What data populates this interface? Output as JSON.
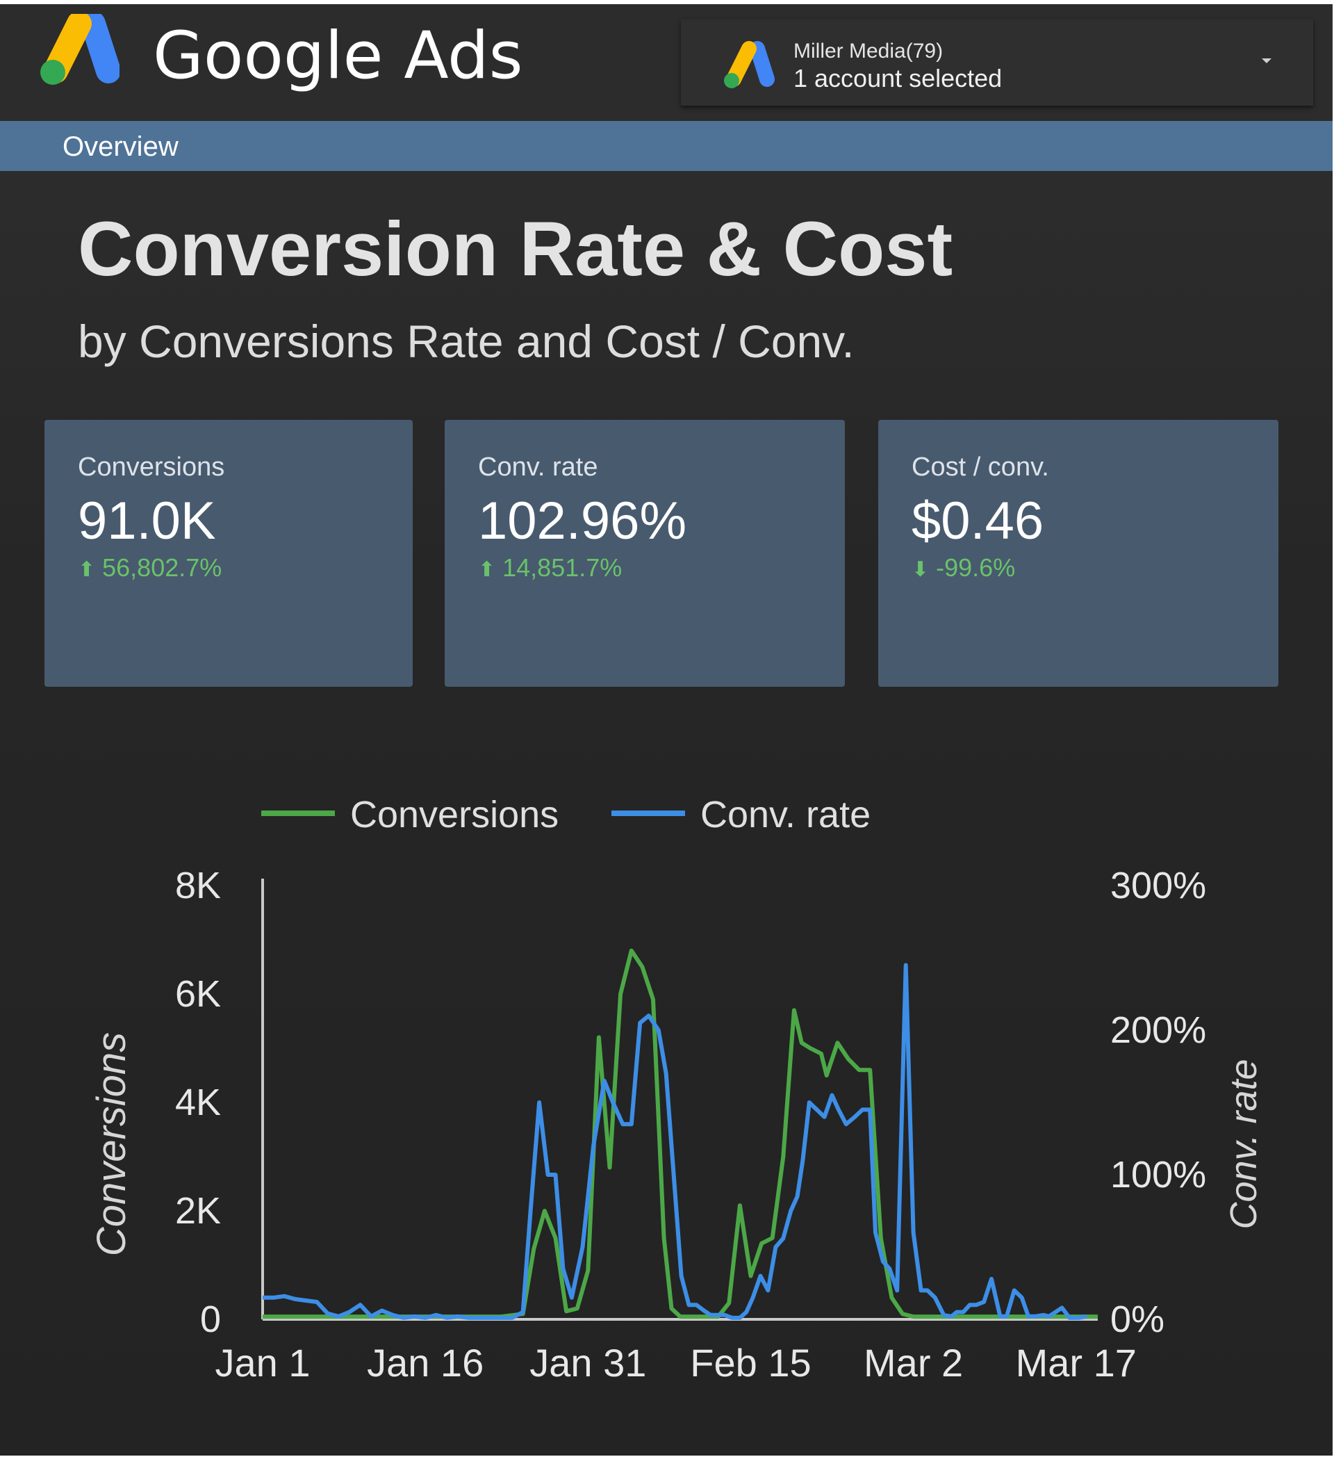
{
  "header": {
    "brand_name": "Google Ads",
    "account_name": "Miller Media(79)",
    "account_status": "1 account selected"
  },
  "nav": {
    "overview_label": "Overview"
  },
  "page": {
    "title": "Conversion Rate & Cost",
    "subtitle": "by Conversions Rate and Cost / Conv."
  },
  "scorecards": [
    {
      "label": "Conversions",
      "value": "91.0K",
      "delta": "56,802.7%",
      "direction": "up"
    },
    {
      "label": "Conv. rate",
      "value": "102.96%",
      "delta": "14,851.7%",
      "direction": "up"
    },
    {
      "label": "Cost / conv.",
      "value": "$0.46",
      "delta": "-99.6%",
      "direction": "down"
    }
  ],
  "colors": {
    "conversions_series": "#4ca847",
    "convrate_series": "#3d8ee6",
    "delta_positive": "#69c26a",
    "nav_bar": "#4f7396",
    "card": "#485a6e"
  },
  "chart_data": {
    "type": "line",
    "x_tick_labels": [
      "Jan 1",
      "Jan 16",
      "Jan 31",
      "Feb 15",
      "Mar 2",
      "Mar 17"
    ],
    "x_tick_positions": [
      0,
      15,
      30,
      45,
      60,
      75
    ],
    "xlim": [
      0,
      77
    ],
    "ylabel": "Conversions",
    "ylabel_right": "Conv. rate",
    "ylim": [
      0,
      8000
    ],
    "yticks": [
      0,
      2000,
      4000,
      6000,
      8000
    ],
    "ytick_labels": [
      "0",
      "2K",
      "4K",
      "6K",
      "8K"
    ],
    "ylim_right": [
      0,
      300
    ],
    "yticks_right": [
      0,
      100,
      200,
      300
    ],
    "ytick_labels_right": [
      "0%",
      "100%",
      "200%",
      "300%"
    ],
    "legend": "top",
    "grid": false,
    "series": [
      {
        "name": "Conversions",
        "axis": "left",
        "x": [
          0,
          2,
          4,
          6,
          8,
          10,
          12,
          14,
          16,
          18,
          20,
          22,
          24,
          25,
          26,
          27,
          28,
          29,
          30,
          31,
          32,
          33,
          34,
          35,
          36,
          37,
          37.7,
          38.5,
          39.5,
          40.5,
          41.5,
          42,
          43,
          44,
          45,
          46,
          47,
          48,
          49,
          49.7,
          50.5,
          51.5,
          52,
          53,
          54,
          55,
          56,
          57,
          58,
          59,
          60,
          61,
          62,
          63,
          64,
          65,
          66,
          67,
          68,
          70,
          72,
          74,
          75,
          76,
          77
        ],
        "y": [
          50,
          50,
          50,
          50,
          50,
          50,
          50,
          50,
          50,
          50,
          50,
          50,
          100,
          1300,
          2000,
          1500,
          150,
          200,
          900,
          5200,
          2800,
          6000,
          6800,
          6500,
          5900,
          1500,
          200,
          50,
          50,
          50,
          50,
          50,
          300,
          2100,
          800,
          1400,
          1500,
          3000,
          5700,
          5100,
          5000,
          4900,
          4500,
          5100,
          4800,
          4600,
          4600,
          1500,
          400,
          100,
          50,
          50,
          50,
          50,
          50,
          50,
          50,
          50,
          50,
          50,
          50,
          50,
          50,
          50,
          50
        ]
      },
      {
        "name": "Conv. rate",
        "axis": "right",
        "x": [
          0,
          1,
          2,
          3,
          4,
          5,
          6,
          7,
          8,
          9,
          10,
          11,
          12,
          13,
          14,
          15,
          16,
          17,
          18,
          19,
          20,
          21,
          22,
          23,
          24,
          24.7,
          25.5,
          26.3,
          27,
          27.7,
          28.5,
          29.5,
          30.5,
          31.5,
          32.3,
          33.2,
          34,
          34.8,
          35.6,
          36.5,
          37.2,
          38,
          38.6,
          39.3,
          40,
          40.7,
          41.3,
          42,
          42.6,
          43.3,
          44,
          44.6,
          45.2,
          45.9,
          46.6,
          47.3,
          48,
          48.7,
          49.3,
          49.8,
          50.4,
          51.1,
          51.8,
          52.5,
          53.1,
          53.8,
          54.6,
          55.3,
          56,
          56.5,
          57.2,
          57.8,
          58.5,
          59.3,
          60,
          60.7,
          61.3,
          62,
          62.8,
          63.5,
          64,
          64.6,
          65.2,
          65.8,
          66.5,
          67.2,
          68,
          68.6,
          69.3,
          70,
          70.6,
          71.2,
          72,
          72.5,
          73.1,
          73.7,
          74.4,
          75.2,
          76
        ],
        "y": [
          15,
          15,
          16,
          14,
          13,
          12,
          4,
          2,
          5,
          10,
          2,
          6,
          3,
          1,
          2,
          1,
          3,
          1,
          2,
          1,
          1,
          1,
          1,
          1,
          5,
          75,
          150,
          100,
          100,
          35,
          15,
          50,
          120,
          165,
          150,
          135,
          135,
          205,
          210,
          200,
          170,
          90,
          30,
          10,
          10,
          6,
          3,
          3,
          3,
          1,
          1,
          5,
          15,
          30,
          20,
          50,
          56,
          75,
          85,
          110,
          150,
          145,
          140,
          155,
          145,
          135,
          140,
          145,
          145,
          60,
          40,
          35,
          20,
          245,
          60,
          20,
          20,
          15,
          3,
          2,
          5,
          5,
          10,
          10,
          12,
          28,
          2,
          2,
          20,
          15,
          2,
          2,
          3,
          2,
          5,
          8,
          1,
          1,
          2
        ]
      }
    ]
  }
}
